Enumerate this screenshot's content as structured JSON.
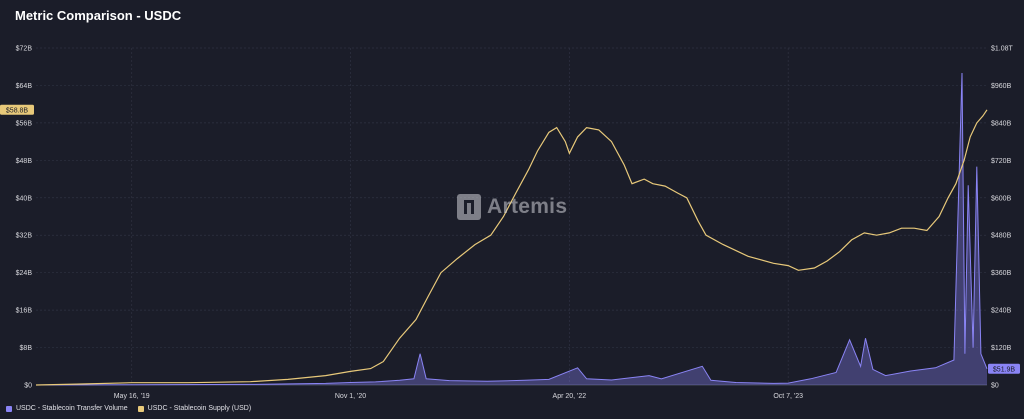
{
  "page": {
    "title": "Metric Comparison - USDC"
  },
  "watermark": {
    "text": "Artemis"
  },
  "colors": {
    "transfer": "#8a84f5",
    "supply": "#e8c97a",
    "grid": "#2f3242",
    "axis": "#555a6b"
  },
  "chart_data": {
    "type": "line",
    "title": "Metric Comparison - USDC",
    "x_ticks": [
      "May 16, '19",
      "Nov 1, '20",
      "Apr 20, '22",
      "Oct 7, '23"
    ],
    "x_range": [
      "2018-09-24",
      "2025-02-04"
    ],
    "left_axis": {
      "ticks": [
        "$0",
        "$8B",
        "$16B",
        "$24B",
        "$32B",
        "$40B",
        "$48B",
        "$56B",
        "$64B",
        "$72B"
      ],
      "ylim": [
        0,
        72
      ]
    },
    "right_axis": {
      "ticks": [
        "$0",
        "$120B",
        "$240B",
        "$360B",
        "$480B",
        "$600B",
        "$720B",
        "$840B",
        "$960B",
        "$1.08T"
      ],
      "ylim": [
        0,
        1080
      ]
    },
    "last_value_labels": {
      "supply": "$58.8B",
      "transfer": "$51.9B"
    },
    "series": [
      {
        "name": "USDC - Stablecoin Supply (USD)",
        "axis": "left",
        "unit": "$B",
        "points": [
          [
            "2018-09-24",
            0.0
          ],
          [
            "2019-01-01",
            0.2
          ],
          [
            "2019-05-16",
            0.5
          ],
          [
            "2019-10-01",
            0.5
          ],
          [
            "2020-03-01",
            0.7
          ],
          [
            "2020-06-01",
            1.2
          ],
          [
            "2020-09-01",
            2.0
          ],
          [
            "2020-11-01",
            2.9
          ],
          [
            "2020-12-20",
            3.5
          ],
          [
            "2021-01-20",
            5.0
          ],
          [
            "2021-03-01",
            10.0
          ],
          [
            "2021-04-10",
            14.0
          ],
          [
            "2021-05-10",
            19.0
          ],
          [
            "2021-06-10",
            24.0
          ],
          [
            "2021-07-20",
            27.0
          ],
          [
            "2021-09-01",
            30.0
          ],
          [
            "2021-10-10",
            32.0
          ],
          [
            "2021-11-10",
            36.0
          ],
          [
            "2021-12-10",
            41.0
          ],
          [
            "2022-01-10",
            46.0
          ],
          [
            "2022-02-01",
            50.0
          ],
          [
            "2022-03-01",
            54.0
          ],
          [
            "2022-03-20",
            55.0
          ],
          [
            "2022-04-10",
            52.0
          ],
          [
            "2022-04-20",
            49.5
          ],
          [
            "2022-05-10",
            53.0
          ],
          [
            "2022-06-01",
            55.0
          ],
          [
            "2022-07-01",
            54.5
          ],
          [
            "2022-08-01",
            52.0
          ],
          [
            "2022-09-01",
            47.0
          ],
          [
            "2022-09-20",
            43.0
          ],
          [
            "2022-10-20",
            44.0
          ],
          [
            "2022-11-10",
            43.0
          ],
          [
            "2022-12-10",
            42.5
          ],
          [
            "2023-01-10",
            41.0
          ],
          [
            "2023-02-01",
            40.0
          ],
          [
            "2023-03-01",
            35.0
          ],
          [
            "2023-03-20",
            32.0
          ],
          [
            "2023-05-01",
            30.0
          ],
          [
            "2023-07-01",
            27.5
          ],
          [
            "2023-09-01",
            26.0
          ],
          [
            "2023-10-07",
            25.5
          ],
          [
            "2023-11-01",
            24.5
          ],
          [
            "2023-12-10",
            25.0
          ],
          [
            "2024-01-10",
            26.5
          ],
          [
            "2024-02-10",
            28.5
          ],
          [
            "2024-03-10",
            31.0
          ],
          [
            "2024-04-10",
            32.5
          ],
          [
            "2024-05-10",
            32.0
          ],
          [
            "2024-06-10",
            32.5
          ],
          [
            "2024-07-10",
            33.5
          ],
          [
            "2024-08-10",
            33.5
          ],
          [
            "2024-09-10",
            33.0
          ],
          [
            "2024-10-10",
            36.0
          ],
          [
            "2024-11-01",
            40.0
          ],
          [
            "2024-11-20",
            43.0
          ],
          [
            "2024-12-10",
            48.0
          ],
          [
            "2024-12-25",
            53.0
          ],
          [
            "2025-01-10",
            56.0
          ],
          [
            "2025-01-25",
            57.5
          ],
          [
            "2025-02-04",
            58.8
          ]
        ]
      },
      {
        "name": "USDC - Stablecoin Transfer Volume",
        "axis": "right",
        "unit": "$B",
        "points": [
          [
            "2018-09-24",
            0
          ],
          [
            "2019-05-16",
            1
          ],
          [
            "2020-03-01",
            2
          ],
          [
            "2020-09-01",
            5
          ],
          [
            "2020-11-01",
            8
          ],
          [
            "2021-01-01",
            10
          ],
          [
            "2021-03-01",
            15
          ],
          [
            "2021-04-05",
            20
          ],
          [
            "2021-04-20",
            100
          ],
          [
            "2021-05-05",
            20
          ],
          [
            "2021-07-01",
            14
          ],
          [
            "2021-10-01",
            12
          ],
          [
            "2022-01-01",
            15
          ],
          [
            "2022-03-01",
            18
          ],
          [
            "2022-05-10",
            55
          ],
          [
            "2022-06-01",
            20
          ],
          [
            "2022-08-01",
            16
          ],
          [
            "2022-11-01",
            30
          ],
          [
            "2022-12-01",
            20
          ],
          [
            "2023-03-11",
            60
          ],
          [
            "2023-04-01",
            15
          ],
          [
            "2023-06-01",
            8
          ],
          [
            "2023-09-01",
            5
          ],
          [
            "2023-10-07",
            6
          ],
          [
            "2023-12-01",
            20
          ],
          [
            "2024-02-01",
            40
          ],
          [
            "2024-03-05",
            145
          ],
          [
            "2024-04-01",
            60
          ],
          [
            "2024-04-13",
            150
          ],
          [
            "2024-05-01",
            50
          ],
          [
            "2024-06-01",
            30
          ],
          [
            "2024-08-01",
            45
          ],
          [
            "2024-10-01",
            55
          ],
          [
            "2024-11-15",
            80
          ],
          [
            "2024-12-05",
            1000
          ],
          [
            "2024-12-12",
            100
          ],
          [
            "2024-12-20",
            640
          ],
          [
            "2025-01-01",
            120
          ],
          [
            "2025-01-10",
            700
          ],
          [
            "2025-01-20",
            100
          ],
          [
            "2025-02-04",
            51.9
          ]
        ]
      }
    ]
  },
  "legend": [
    {
      "label": "USDC - Stablecoin Transfer Volume",
      "color": "#8a84f5"
    },
    {
      "label": "USDC - Stablecoin Supply (USD)",
      "color": "#e8c97a"
    }
  ]
}
